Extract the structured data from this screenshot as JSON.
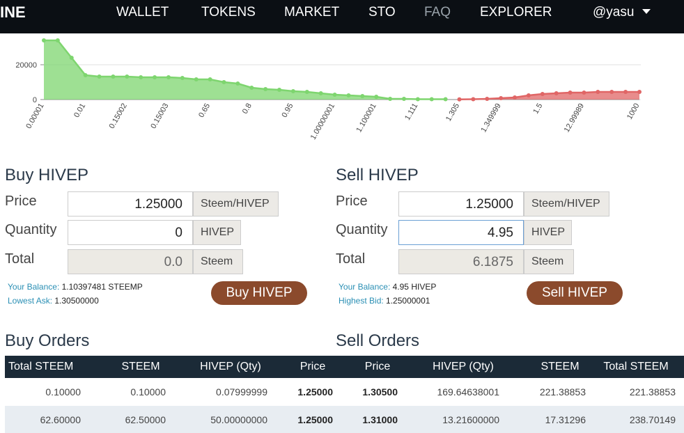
{
  "nav": {
    "brand": "INE",
    "items": [
      "WALLET",
      "TOKENS",
      "MARKET",
      "STO",
      "FAQ",
      "EXPLORER"
    ],
    "user": "@yasu"
  },
  "depth_chart": {
    "categories": [
      "0.00001",
      null,
      null,
      "0.01",
      null,
      null,
      "0.15002",
      null,
      null,
      "0.15003",
      null,
      null,
      "0.65",
      null,
      null,
      "0.8",
      null,
      null,
      "0.95",
      null,
      null,
      "1.00000001",
      null,
      null,
      "1.100001",
      null,
      null,
      "1.111",
      null,
      null,
      "1.305",
      null,
      null,
      "1.349999",
      null,
      null,
      "1.5",
      null,
      null,
      "12.99989",
      null,
      null,
      null,
      "1000"
    ],
    "series": [
      {
        "color": "#7ed56f",
        "values": [
          34000,
          34000,
          24000,
          14000,
          13200,
          13200,
          13200,
          12800,
          12800,
          12800,
          12400,
          11600,
          11600,
          10000,
          9200,
          6800,
          6000,
          5600,
          4800,
          4400,
          3600,
          2800,
          2400,
          2000,
          1600,
          400,
          400,
          200,
          200,
          200,
          null,
          null,
          null,
          null,
          null,
          null,
          null,
          null,
          null,
          null,
          null,
          null,
          null,
          null
        ]
      },
      {
        "color": "#e06666",
        "values": [
          null,
          null,
          null,
          null,
          null,
          null,
          null,
          null,
          null,
          null,
          null,
          null,
          null,
          null,
          null,
          null,
          null,
          null,
          null,
          null,
          null,
          null,
          null,
          null,
          null,
          null,
          null,
          null,
          null,
          null,
          100,
          200,
          400,
          800,
          1200,
          2400,
          3200,
          3600,
          4000,
          4000,
          4400,
          4400,
          4400,
          4400
        ]
      }
    ],
    "ylim": [
      0,
      38000
    ],
    "yticks": [
      0,
      20000
    ],
    "grid": true
  },
  "buy": {
    "title": "Buy HIVEP",
    "price_label": "Price",
    "price": "1.25000",
    "price_unit": "Steem/HIVEP",
    "qty_label": "Quantity",
    "qty": "0",
    "qty_unit": "HIVEP",
    "total_label": "Total",
    "total": "0.0",
    "total_unit": "Steem",
    "balance_label": "Your Balance:",
    "balance": "1.10397481 STEEMP",
    "info_label": "Lowest Ask:",
    "info": "1.30500000",
    "button": "Buy HIVEP"
  },
  "sell": {
    "title": "Sell HIVEP",
    "price_label": "Price",
    "price": "1.25000",
    "price_unit": "Steem/HIVEP",
    "qty_label": "Quantity",
    "qty": "4.95",
    "qty_unit": "HIVEP",
    "total_label": "Total",
    "total": "6.1875",
    "total_unit": "Steem",
    "balance_label": "Your Balance:",
    "balance": "4.95 HIVEP",
    "info_label": "Highest Bid:",
    "info": "1.25000001",
    "button": "Sell HIVEP"
  },
  "orders": {
    "buy_title": "Buy Orders",
    "sell_title": "Sell Orders",
    "headers": [
      "Total STEEM",
      "STEEM",
      "HIVEP (Qty)",
      "Price",
      "Price",
      "HIVEP (Qty)",
      "STEEM",
      "Total STEEM"
    ],
    "rows": [
      [
        "0.10000",
        "0.10000",
        "0.07999999",
        "1.25000",
        "1.30500",
        "169.64638001",
        "221.38853",
        "221.38853"
      ],
      [
        "62.60000",
        "62.50000",
        "50.00000000",
        "1.25000",
        "1.31000",
        "13.21600000",
        "17.31296",
        "238.70149"
      ]
    ]
  }
}
